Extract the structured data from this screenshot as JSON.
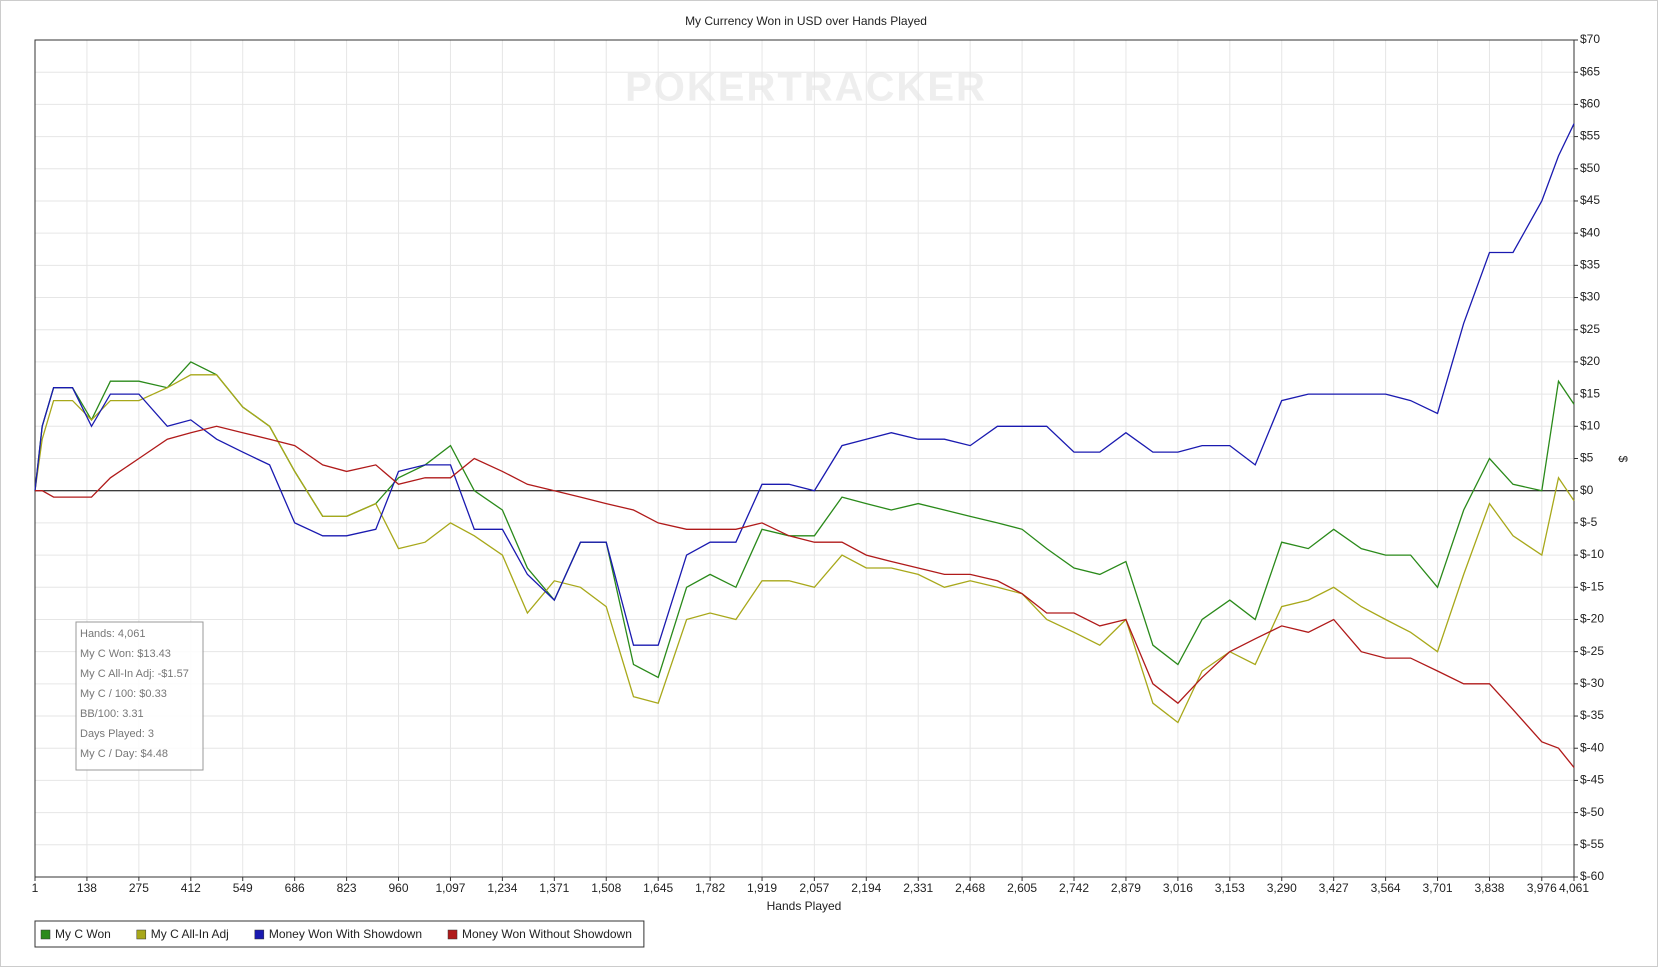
{
  "chart_data": {
    "type": "line",
    "title": "My Currency Won in USD over Hands Played",
    "xlabel": "Hands Played",
    "ylabel": "$",
    "watermark": "POKERTRACKER",
    "grid": true,
    "legend": "bottom-left",
    "annotations": [
      "Hands: 4,061",
      "My C Won: $13.43",
      "My C All-In Adj: -$1.57",
      "My C / 100: $0.33",
      "BB/100: 3.31",
      "Days Played: 3",
      "My C / Day: $4.48"
    ],
    "x": [
      1,
      20,
      50,
      100,
      150,
      200,
      275,
      350,
      412,
      480,
      549,
      620,
      686,
      760,
      823,
      900,
      960,
      1030,
      1097,
      1160,
      1234,
      1300,
      1371,
      1440,
      1508,
      1580,
      1645,
      1720,
      1782,
      1850,
      1919,
      1990,
      2057,
      2130,
      2194,
      2260,
      2331,
      2400,
      2468,
      2540,
      2605,
      2670,
      2742,
      2810,
      2879,
      2950,
      3016,
      3080,
      3153,
      3220,
      3290,
      3360,
      3427,
      3500,
      3564,
      3630,
      3701,
      3770,
      3838,
      3900,
      3976,
      4020,
      4061
    ],
    "series": [
      {
        "name": "My C Won",
        "color": "#2a8a1a",
        "values": [
          0,
          10,
          16,
          16,
          11,
          17,
          17,
          16,
          20,
          18,
          13,
          10,
          3,
          -4,
          -4,
          -2,
          2,
          4,
          7,
          0,
          -3,
          -12,
          -17,
          -8,
          -8,
          -27,
          -29,
          -15,
          -13,
          -15,
          -6,
          -7,
          -7,
          -1,
          -2,
          -3,
          -2,
          -3,
          -4,
          -5,
          -6,
          -9,
          -12,
          -13,
          -11,
          -24,
          -27,
          -20,
          -17,
          -20,
          -8,
          -9,
          -6,
          -9,
          -10,
          -10,
          -15,
          -3,
          5,
          1,
          0,
          17,
          13.43
        ]
      },
      {
        "name": "My C All-In Adj",
        "color": "#a8a81a",
        "values": [
          0,
          8,
          14,
          14,
          11,
          14,
          14,
          16,
          18,
          18,
          13,
          10,
          3,
          -4,
          -4,
          -2,
          -9,
          -8,
          -5,
          -7,
          -10,
          -19,
          -14,
          -15,
          -18,
          -32,
          -33,
          -20,
          -19,
          -20,
          -14,
          -14,
          -15,
          -10,
          -12,
          -12,
          -13,
          -15,
          -14,
          -15,
          -16,
          -20,
          -22,
          -24,
          -20,
          -33,
          -36,
          -28,
          -25,
          -27,
          -18,
          -17,
          -15,
          -18,
          -20,
          -22,
          -25,
          -13,
          -2,
          -7,
          -10,
          2,
          -1.57
        ]
      },
      {
        "name": "Money Won With Showdown",
        "color": "#1a1ab0",
        "values": [
          0,
          10,
          16,
          16,
          10,
          15,
          15,
          10,
          11,
          8,
          6,
          4,
          -5,
          -7,
          -7,
          -6,
          3,
          4,
          4,
          -6,
          -6,
          -13,
          -17,
          -8,
          -8,
          -24,
          -24,
          -10,
          -8,
          -8,
          1,
          1,
          0,
          7,
          8,
          9,
          8,
          8,
          7,
          10,
          10,
          10,
          6,
          6,
          9,
          6,
          6,
          7,
          7,
          4,
          14,
          15,
          15,
          15,
          15,
          14,
          12,
          26,
          37,
          37,
          45,
          52,
          57
        ]
      },
      {
        "name": "Money Won Without Showdown",
        "color": "#b01a1a",
        "values": [
          0,
          0,
          -1,
          -1,
          -1,
          2,
          5,
          8,
          9,
          10,
          9,
          8,
          7,
          4,
          3,
          4,
          1,
          2,
          2,
          5,
          3,
          1,
          0,
          -1,
          -2,
          -3,
          -5,
          -6,
          -6,
          -6,
          -5,
          -7,
          -8,
          -8,
          -10,
          -11,
          -12,
          -13,
          -13,
          -14,
          -16,
          -19,
          -19,
          -21,
          -20,
          -30,
          -33,
          -29,
          -25,
          -23,
          -21,
          -22,
          -20,
          -25,
          -26,
          -26,
          -28,
          -30,
          -30,
          -34,
          -39,
          -40,
          -43
        ]
      }
    ],
    "xlim": [
      1,
      4061
    ],
    "xticks": [
      1,
      138,
      275,
      412,
      549,
      686,
      823,
      960,
      {
        "value": 1097,
        "label": "1,097"
      },
      {
        "value": 1234,
        "label": "1,234"
      },
      {
        "value": 1371,
        "label": "1,371"
      },
      {
        "value": 1508,
        "label": "1,508"
      },
      {
        "value": 1645,
        "label": "1,645"
      },
      {
        "value": 1782,
        "label": "1,782"
      },
      {
        "value": 1919,
        "label": "1,919"
      },
      {
        "value": 2057,
        "label": "2,057"
      },
      {
        "value": 2194,
        "label": "2,194"
      },
      {
        "value": 2331,
        "label": "2,331"
      },
      {
        "value": 2468,
        "label": "2,468"
      },
      {
        "value": 2605,
        "label": "2,605"
      },
      {
        "value": 2742,
        "label": "2,742"
      },
      {
        "value": 2879,
        "label": "2,879"
      },
      {
        "value": 3016,
        "label": "3,016"
      },
      {
        "value": 3153,
        "label": "3,153"
      },
      {
        "value": 3290,
        "label": "3,290"
      },
      {
        "value": 3427,
        "label": "3,427"
      },
      {
        "value": 3564,
        "label": "3,564"
      },
      {
        "value": 3701,
        "label": "3,701"
      },
      {
        "value": 3838,
        "label": "3,838"
      },
      {
        "value": 3976,
        "label": "3,976"
      },
      {
        "value": 4061,
        "label": "4,061"
      }
    ],
    "ylim": [
      -60,
      70
    ],
    "yticks": [
      {
        "value": -60,
        "label": "$-60"
      },
      {
        "value": -55,
        "label": "$-55"
      },
      {
        "value": -50,
        "label": "$-50"
      },
      {
        "value": -45,
        "label": "$-45"
      },
      {
        "value": -40,
        "label": "$-40"
      },
      {
        "value": -35,
        "label": "$-35"
      },
      {
        "value": -30,
        "label": "$-30"
      },
      {
        "value": -25,
        "label": "$-25"
      },
      {
        "value": -20,
        "label": "$-20"
      },
      {
        "value": -15,
        "label": "$-15"
      },
      {
        "value": -10,
        "label": "$-10"
      },
      {
        "value": -5,
        "label": "$-5"
      },
      {
        "value": 0,
        "label": "$0"
      },
      {
        "value": 5,
        "label": "$5"
      },
      {
        "value": 10,
        "label": "$10"
      },
      {
        "value": 15,
        "label": "$15"
      },
      {
        "value": 20,
        "label": "$20"
      },
      {
        "value": 25,
        "label": "$25"
      },
      {
        "value": 30,
        "label": "$30"
      },
      {
        "value": 35,
        "label": "$35"
      },
      {
        "value": 40,
        "label": "$40"
      },
      {
        "value": 45,
        "label": "$45"
      },
      {
        "value": 50,
        "label": "$50"
      },
      {
        "value": 55,
        "label": "$55"
      },
      {
        "value": 60,
        "label": "$60"
      },
      {
        "value": 65,
        "label": "$65"
      },
      {
        "value": 70,
        "label": "$70"
      }
    ]
  }
}
